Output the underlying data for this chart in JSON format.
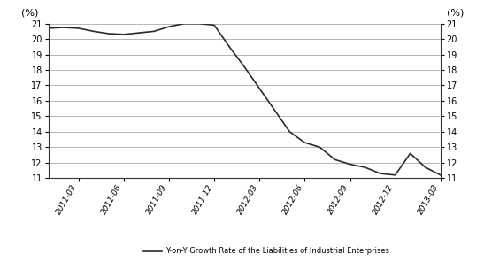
{
  "x_labels": [
    "2011-03",
    "2011-06",
    "2011-09",
    "2011-12",
    "2012-03",
    "2012-06",
    "2012-09",
    "2012-12",
    "2013-03"
  ],
  "ylim": [
    11,
    21
  ],
  "yticks": [
    11,
    12,
    13,
    14,
    15,
    16,
    17,
    18,
    19,
    20,
    21
  ],
  "line_color": "#2a2a2a",
  "line_width": 1.2,
  "background_color": "#ffffff",
  "legend_label": "Y-on-Y Growth Rate of the Liabilities of Industrial Enterprises",
  "ylabel_left": "(%)",
  "ylabel_right": "(%)",
  "grid_color": "#999999",
  "grid_linewidth": 0.5,
  "x_tick_pos": [
    2,
    5,
    8,
    11,
    14,
    17,
    20,
    23,
    26
  ],
  "months": [
    0,
    1,
    2,
    3,
    4,
    5,
    6,
    7,
    8,
    9,
    10,
    11,
    12,
    13,
    14,
    15,
    16,
    17,
    18,
    19,
    20,
    21,
    22,
    23,
    24,
    25,
    26
  ],
  "y_data": [
    20.7,
    20.75,
    20.7,
    20.5,
    20.35,
    20.3,
    20.4,
    20.5,
    20.8,
    21.0,
    21.0,
    20.9,
    19.5,
    18.2,
    16.8,
    15.4,
    14.0,
    13.3,
    13.0,
    12.2,
    11.9,
    11.7,
    11.3,
    11.2,
    12.6,
    11.7,
    11.2
  ]
}
